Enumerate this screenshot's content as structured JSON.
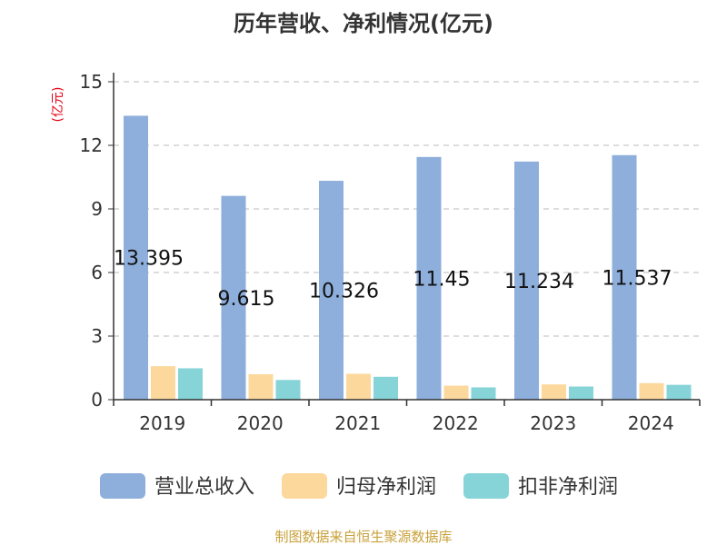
{
  "chart_data": {
    "type": "bar",
    "title": "历年营收、净利情况(亿元)",
    "unit_label": "(亿元)",
    "categories": [
      "2019",
      "2020",
      "2021",
      "2022",
      "2023",
      "2024"
    ],
    "ylim": [
      0,
      15
    ],
    "yticks": [
      0,
      3,
      6,
      9,
      12,
      15
    ],
    "grid": true,
    "legend_position": "bottom",
    "series": [
      {
        "name": "营业总收入",
        "color": "#8eaedb",
        "values": [
          13.395,
          9.615,
          10.326,
          11.45,
          11.234,
          11.537
        ],
        "labels": [
          "13.395",
          "9.615",
          "10.326",
          "11.45",
          "11.234",
          "11.537"
        ]
      },
      {
        "name": "归母净利润",
        "color": "#fdd89c",
        "values": [
          1.58,
          1.2,
          1.22,
          0.66,
          0.72,
          0.78
        ]
      },
      {
        "name": "扣非净利润",
        "color": "#86d4d8",
        "values": [
          1.48,
          0.93,
          1.08,
          0.58,
          0.62,
          0.7
        ]
      }
    ]
  },
  "colors": {
    "unit_label": "#e60012",
    "source": "#c9a13b",
    "axis": "#333333",
    "grid": "#bbbbbb"
  },
  "source_text": "制图数据来自恒生聚源数据库"
}
